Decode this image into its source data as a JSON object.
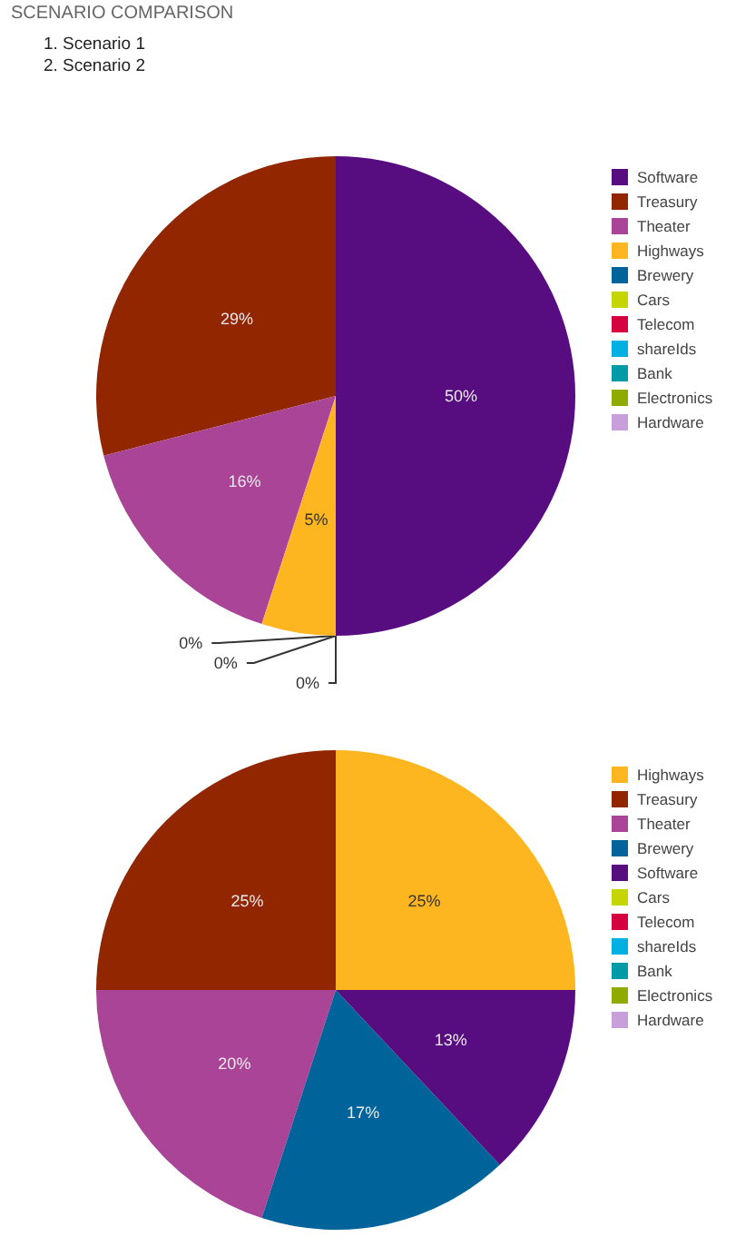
{
  "chart_data": [
    {
      "type": "pie",
      "title": "SCENARIO COMPARISON",
      "annotations": [
        "1. Scenario 1",
        "2. Scenario 2"
      ],
      "legend": "right",
      "categories": [
        "Software",
        "Treasury",
        "Theater",
        "Highways",
        "Brewery",
        "Cars",
        "Telecom",
        "shareIds",
        "Bank",
        "Electronics",
        "Hardware"
      ],
      "values": [
        50,
        29,
        16,
        5,
        0,
        0,
        0,
        0,
        0,
        0,
        0
      ],
      "colors": [
        "#570d80",
        "#922600",
        "#a94497",
        "#fdb620",
        "#006399",
        "#c5d500",
        "#d60040",
        "#00b0e3",
        "#009ba6",
        "#90ab00",
        "#c99fdb"
      ],
      "value_labels": [
        "50%",
        "29%",
        "16%",
        "5%",
        "0%",
        "0%",
        "0%",
        null,
        null,
        null,
        null
      ]
    },
    {
      "type": "pie",
      "legend": "right",
      "categories": [
        "Highways",
        "Treasury",
        "Theater",
        "Brewery",
        "Software",
        "Cars",
        "Telecom",
        "shareIds",
        "Bank",
        "Electronics",
        "Hardware"
      ],
      "values": [
        25,
        25,
        20,
        17,
        13,
        0,
        0,
        0,
        0,
        0,
        0
      ],
      "colors": [
        "#fdb620",
        "#922600",
        "#a94497",
        "#006399",
        "#570d80",
        "#c5d500",
        "#d60040",
        "#00b0e3",
        "#009ba6",
        "#90ab00",
        "#c99fdb"
      ],
      "value_labels": [
        "25%",
        "25%",
        "20%",
        "17%",
        "13%",
        null,
        null,
        null,
        null,
        null,
        null
      ]
    }
  ]
}
